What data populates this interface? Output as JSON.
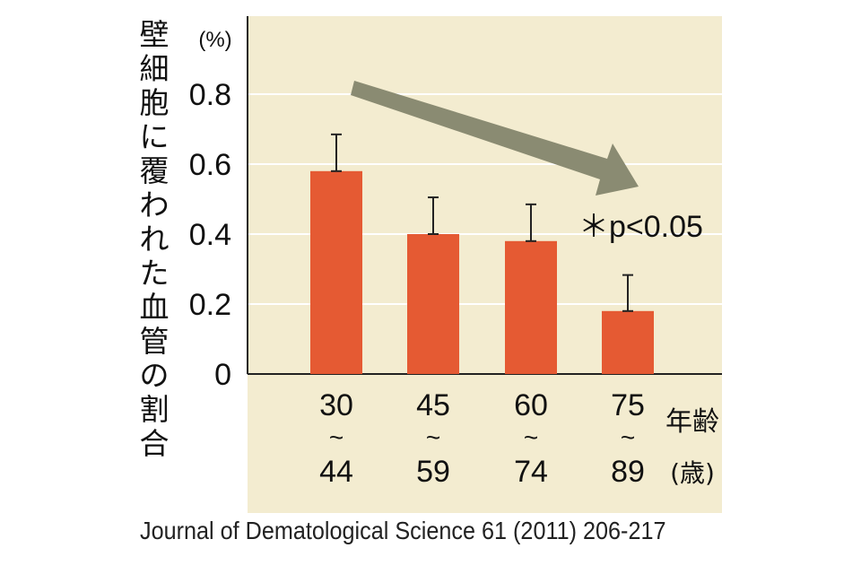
{
  "chart_data": {
    "type": "bar",
    "ylabel": "壁細胞に覆われた血管の割合",
    "yunit": "(%)",
    "ylim": [
      0,
      1.0
    ],
    "yticks": [
      0,
      0.2,
      0.4,
      0.6,
      0.8
    ],
    "ytick_labels": [
      "0",
      "0.2",
      "0.4",
      "0.6",
      "0.8"
    ],
    "grid": true,
    "categories": [
      {
        "top": "30",
        "sep": "~",
        "bottom": "44"
      },
      {
        "top": "45",
        "sep": "~",
        "bottom": "59"
      },
      {
        "top": "60",
        "sep": "~",
        "bottom": "74"
      },
      {
        "top": "75",
        "sep": "~",
        "bottom": "89"
      }
    ],
    "values": [
      0.58,
      0.4,
      0.38,
      0.18
    ],
    "error_upper": [
      0.685,
      0.505,
      0.485,
      0.283
    ],
    "xlabel": "年齢",
    "xunit": "(歳)",
    "annotation": "＊p<0.05",
    "trend_arrow": "decreasing"
  },
  "colors": {
    "plot_bg": "#f3ecd0",
    "bar": "#e55a33",
    "arrow": "#8a8b72",
    "grid": "#ffffff",
    "axis": "#222222"
  },
  "source": "Journal of Dematological Science 61 (2011) 206-217"
}
